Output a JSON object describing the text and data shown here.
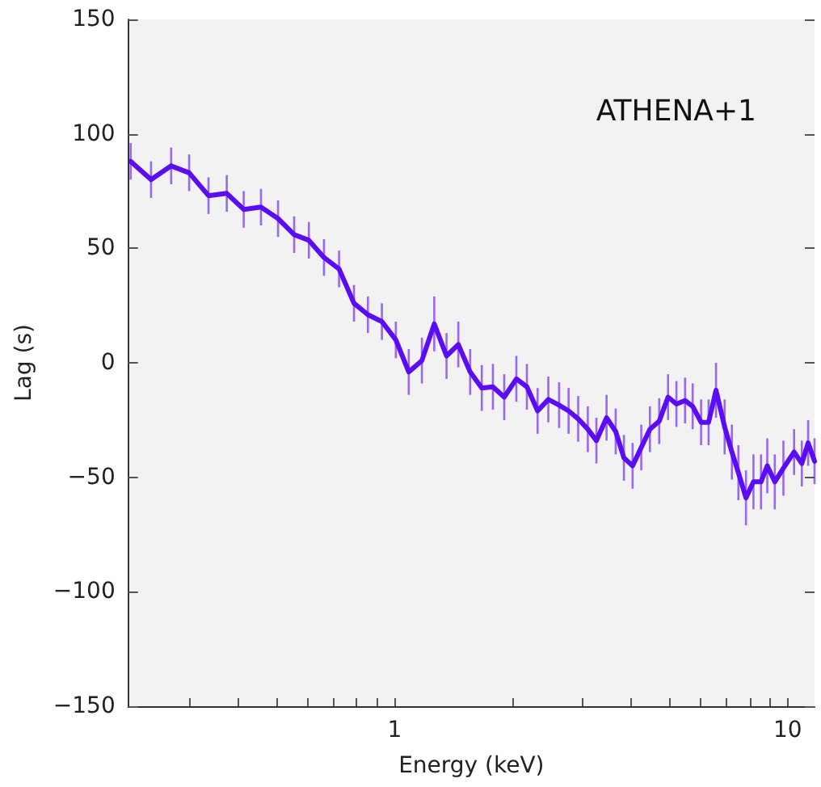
{
  "chart_data": {
    "type": "line",
    "xlabel": "Energy (keV)",
    "ylabel": "Lag (s)",
    "annotations": [
      "ATHENA+1"
    ],
    "log": "x",
    "grid": false,
    "marker": "none",
    "line_style": "solid",
    "xlim": [
      0.21,
      11.7
    ],
    "xticks": [
      {
        "value": 0.3,
        "label": null
      },
      {
        "value": 0.4,
        "label": null
      },
      {
        "value": 0.5,
        "label": null
      },
      {
        "value": 0.6,
        "label": null
      },
      {
        "value": 0.7,
        "label": null
      },
      {
        "value": 0.8,
        "label": null
      },
      {
        "value": 0.9,
        "label": null
      },
      1,
      {
        "value": 2,
        "label": null
      },
      {
        "value": 3,
        "label": null
      },
      {
        "value": 4,
        "label": null
      },
      {
        "value": 5,
        "label": null
      },
      {
        "value": 6,
        "label": null
      },
      {
        "value": 7,
        "label": null
      },
      {
        "value": 8,
        "label": null
      },
      {
        "value": 9,
        "label": null
      },
      10
    ],
    "ylim": [
      -150,
      150
    ],
    "yticks": [
      {
        "value": -150,
        "label": "−150"
      },
      {
        "value": -100,
        "label": "−100"
      },
      {
        "value": -50,
        "label": "−50"
      },
      0,
      50,
      100,
      150
    ],
    "x": [
      0.213,
      0.24,
      0.27,
      0.3,
      0.336,
      0.374,
      0.413,
      0.457,
      0.505,
      0.555,
      0.605,
      0.661,
      0.722,
      0.788,
      0.855,
      0.928,
      1.007,
      1.086,
      1.173,
      1.261,
      1.355,
      1.452,
      1.556,
      1.666,
      1.778,
      1.9,
      2.04,
      2.17,
      2.31,
      2.46,
      2.62,
      2.77,
      2.93,
      3.1,
      3.26,
      3.46,
      3.65,
      3.83,
      4.03,
      4.24,
      4.46,
      4.71,
      4.96,
      5.21,
      5.48,
      5.73,
      6.02,
      6.29,
      6.57,
      6.91,
      7.21,
      7.49,
      7.83,
      8.18,
      8.55,
      8.87,
      9.27,
      9.75,
      10.38,
      10.86,
      11.27,
      11.7
    ],
    "series": [
      {
        "color": "#5b0cf5",
        "values": [
          88,
          80,
          86,
          83,
          73,
          74,
          67,
          68,
          63,
          56,
          53.5,
          46,
          41,
          26,
          21,
          18,
          10,
          -4,
          1,
          17,
          3,
          8,
          -4,
          -11,
          -10.5,
          -15,
          -7,
          -10.5,
          -21,
          -16,
          -18.5,
          -21,
          -24.5,
          -29,
          -34,
          -24,
          -30,
          -41.5,
          -45,
          -37,
          -29,
          -25.5,
          -15,
          -18,
          -16.5,
          -19,
          -26,
          -26,
          -12,
          -28,
          -39,
          -48,
          -59,
          -52,
          -52,
          -45,
          -52,
          -46,
          -39,
          -44,
          -35,
          -43
        ],
        "errors": [
          8,
          8,
          8,
          8,
          8,
          8,
          8,
          8,
          8,
          8,
          8,
          8,
          8,
          8,
          8,
          8,
          8,
          10,
          10,
          12,
          10,
          10,
          10,
          10,
          10,
          10,
          10,
          10,
          10,
          10,
          10,
          10,
          10,
          10,
          10,
          10,
          10,
          10,
          10,
          10,
          10,
          10,
          10,
          10,
          10,
          10,
          10,
          10,
          12,
          12,
          12,
          12,
          12,
          12,
          12,
          12,
          12,
          12,
          10,
          10,
          10,
          10
        ]
      }
    ]
  }
}
